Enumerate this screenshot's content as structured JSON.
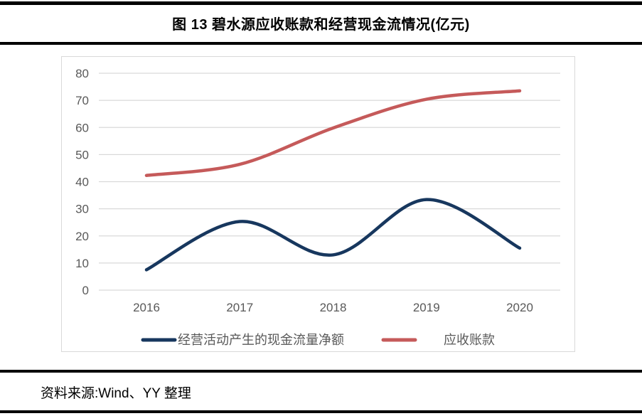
{
  "figure": {
    "title": "图 13 碧水源应收账款和经营现金流情况(亿元)",
    "source": "资料来源:Wind、YY 整理"
  },
  "chart_data": {
    "type": "line",
    "title": "图 13 碧水源应收账款和经营现金流情况(亿元)",
    "x": [
      "2016",
      "2017",
      "2018",
      "2019",
      "2020"
    ],
    "series": [
      {
        "name": "经营活动产生的现金流量净额",
        "color": "#17375E",
        "values": [
          7.5,
          25.3,
          13.0,
          33.4,
          15.5
        ]
      },
      {
        "name": "应收账款",
        "color": "#C55A5A",
        "values": [
          42.3,
          46.4,
          59.8,
          70.4,
          73.5
        ]
      }
    ],
    "ylim": [
      0,
      80
    ],
    "ytick_step": 10,
    "yticks": [
      0,
      10,
      20,
      30,
      40,
      50,
      60,
      70,
      80
    ],
    "grid": true,
    "line_style": "smooth",
    "legend_position": "bottom",
    "colors": {
      "gridline": "#d9d9d9",
      "tick_label": "#595959",
      "legend_label": "#595959",
      "frame_border": "#d9d9d9"
    }
  }
}
